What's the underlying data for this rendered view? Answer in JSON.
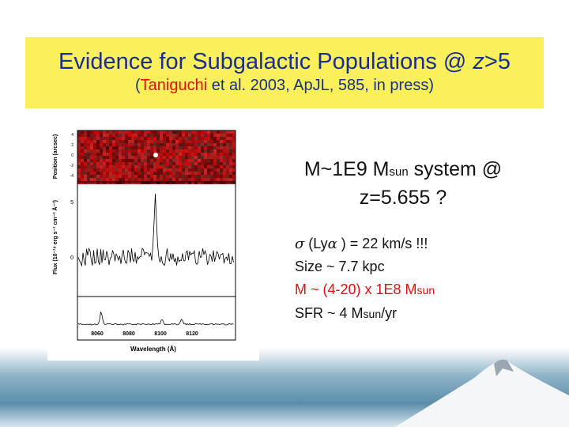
{
  "title": {
    "text": "Evidence for Subgalactic Populations @ ",
    "italic": "z",
    "rest": ">5"
  },
  "subtitle": {
    "open": "(",
    "author": "Taniguchi",
    "rest": " et al. 2003, ApJL, 585, in press)"
  },
  "figure": {
    "y_label_top": "Position (arcsec)",
    "y_label": "Flux (10⁻¹⁸ erg s⁻¹ cm⁻² Å⁻¹)",
    "x_label": "Wavelength (Å)",
    "x_ticks": [
      "8060",
      "8080",
      "8100",
      "8120"
    ],
    "y_ticks": [
      "5",
      "0"
    ],
    "pos_ticks": [
      "4",
      "2",
      "0",
      "-2",
      "-4"
    ]
  },
  "headline": {
    "line1": "M~1E9 M",
    "sub1": "sun",
    "line1_rest": " system @",
    "line2": "z=5.655 ?"
  },
  "bullets": [
    {
      "sigma": "σ",
      "a": " (Ly",
      "alpha": "α",
      "b": " ) = 22 km/s !!!"
    },
    {
      "text": "Size ~ 7.7 kpc"
    },
    {
      "text": "M ~ (4-20) x 1E8 M",
      "sub": "sun"
    },
    {
      "text": "SFR ~ 4 M",
      "sub": "sun",
      "rest": "/yr"
    }
  ]
}
